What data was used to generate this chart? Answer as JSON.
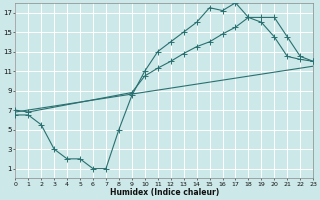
{
  "xlabel": "Humidex (Indice chaleur)",
  "bg_color": "#cce8e8",
  "grid_color": "#b8d8d8",
  "line_color": "#2a7070",
  "line1_x": [
    0,
    1,
    2,
    3,
    4,
    5,
    6,
    7,
    8,
    9,
    10,
    11,
    12,
    13,
    14,
    15,
    16,
    17,
    18,
    19,
    20,
    21,
    22,
    23
  ],
  "line1_y": [
    6.5,
    6.5,
    5.5,
    3.0,
    2.0,
    2.0,
    1.0,
    1.0,
    5.0,
    8.5,
    11.0,
    13.0,
    14.0,
    15.0,
    16.0,
    17.5,
    17.2,
    18.0,
    16.5,
    16.0,
    14.5,
    12.5,
    12.2,
    12.0
  ],
  "line2_x": [
    0,
    1,
    9,
    10,
    11,
    12,
    13,
    14,
    15,
    16,
    17,
    18,
    19,
    20,
    21,
    22,
    23
  ],
  "line2_y": [
    7.0,
    6.8,
    8.8,
    10.5,
    11.3,
    12.0,
    12.8,
    13.5,
    14.0,
    14.8,
    15.5,
    16.5,
    16.5,
    16.5,
    14.5,
    12.5,
    12.0
  ],
  "line3_x": [
    0,
    23
  ],
  "line3_y": [
    6.8,
    11.5
  ],
  "xlim": [
    0,
    23
  ],
  "ylim": [
    0,
    18
  ],
  "xticks": [
    0,
    1,
    2,
    3,
    4,
    5,
    6,
    7,
    8,
    9,
    10,
    11,
    12,
    13,
    14,
    15,
    16,
    17,
    18,
    19,
    20,
    21,
    22,
    23
  ],
  "yticks": [
    1,
    3,
    5,
    7,
    9,
    11,
    13,
    15,
    17
  ]
}
